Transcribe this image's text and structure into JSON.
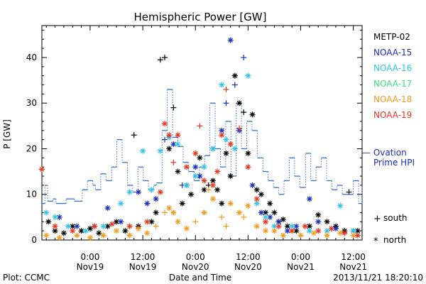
{
  "chart_data": {
    "type": "scatter",
    "title": "Hemispheric Power [GW]",
    "ylabel": "P [GW]",
    "xlabel": "Date and Time",
    "ylim": [
      0,
      47
    ],
    "yticks": [
      0,
      10,
      20,
      30,
      40
    ],
    "xlim": [
      -11,
      62
    ],
    "xticks": [
      {
        "x": 0,
        "time": "0:00",
        "date": "Nov19"
      },
      {
        "x": 12,
        "time": "12:00",
        "date": "Nov19"
      },
      {
        "x": 24,
        "time": "0:00",
        "date": "Nov20"
      },
      {
        "x": 36,
        "time": "12:00",
        "date": "Nov20"
      },
      {
        "x": 48,
        "time": "0:00",
        "date": "Nov21"
      },
      {
        "x": 60,
        "time": "12:00",
        "date": "Nov21"
      }
    ],
    "ovation_label": [
      "— Ovation",
      "Prime HPI"
    ],
    "ovation_color": "#3a6fd8",
    "ovation": [
      [
        -11,
        8
      ],
      [
        -10.3,
        12
      ],
      [
        -9.7,
        8.5
      ],
      [
        -8.5,
        9
      ],
      [
        -7.8,
        8
      ],
      [
        -5.5,
        9
      ],
      [
        -3.6,
        8.5
      ],
      [
        -1.8,
        11
      ],
      [
        -0.6,
        13
      ],
      [
        0.6,
        12
      ],
      [
        1.2,
        11
      ],
      [
        2.4,
        14.5
      ],
      [
        3.6,
        13
      ],
      [
        4.9,
        16
      ],
      [
        6.1,
        22
      ],
      [
        7.3,
        17
      ],
      [
        8.5,
        12
      ],
      [
        9.7,
        10.5
      ],
      [
        10.9,
        16
      ],
      [
        12.1,
        13
      ],
      [
        13.3,
        11
      ],
      [
        14.5,
        12
      ],
      [
        15.1,
        12.5
      ],
      [
        16.4,
        24
      ],
      [
        17.6,
        33
      ],
      [
        18.8,
        22.5
      ],
      [
        20.0,
        20.5
      ],
      [
        21.2,
        17
      ],
      [
        22.4,
        15
      ],
      [
        23.7,
        13
      ],
      [
        24.9,
        16
      ],
      [
        26.1,
        18.5
      ],
      [
        27.3,
        30
      ],
      [
        28.5,
        20
      ],
      [
        29.7,
        16
      ],
      [
        30.9,
        26
      ],
      [
        32.1,
        14
      ],
      [
        33.3,
        30
      ],
      [
        34.5,
        20
      ],
      [
        35.7,
        26
      ],
      [
        36.9,
        24
      ],
      [
        38.1,
        18
      ],
      [
        39.4,
        15
      ],
      [
        40.6,
        13
      ],
      [
        41.8,
        11.5
      ],
      [
        43.0,
        10
      ],
      [
        44.2,
        13
      ],
      [
        45.4,
        18
      ],
      [
        46.6,
        14
      ],
      [
        47.8,
        11.5
      ],
      [
        49.1,
        19
      ],
      [
        50.3,
        13
      ],
      [
        51.5,
        16
      ],
      [
        52.7,
        18
      ],
      [
        53.9,
        13
      ],
      [
        55.1,
        11
      ],
      [
        56.3,
        12
      ],
      [
        57.5,
        10
      ],
      [
        58.8,
        10
      ],
      [
        60.0,
        13
      ],
      [
        61.2,
        8
      ],
      [
        62,
        12
      ]
    ],
    "series": [
      {
        "name": "METP-02",
        "color": "#000000",
        "points": [
          [
            -9.5,
            4,
            "n"
          ],
          [
            -8,
            2,
            "n"
          ],
          [
            -6,
            1.5,
            "n"
          ],
          [
            -4,
            3,
            "n"
          ],
          [
            -2,
            2,
            "n"
          ],
          [
            0,
            2.5,
            "n"
          ],
          [
            2,
            1.5,
            "n"
          ],
          [
            4,
            3,
            "n"
          ],
          [
            6,
            4,
            "n"
          ],
          [
            8,
            2,
            "n"
          ],
          [
            10,
            23,
            "s"
          ],
          [
            11,
            3,
            "n"
          ],
          [
            14,
            4,
            "n"
          ],
          [
            15,
            6,
            "n"
          ],
          [
            16,
            39.5,
            "s"
          ],
          [
            17,
            40,
            "s"
          ],
          [
            18,
            20,
            "n"
          ],
          [
            19,
            29,
            "s"
          ],
          [
            20,
            15,
            "n"
          ],
          [
            21,
            8,
            "n"
          ],
          [
            22,
            12,
            "n"
          ],
          [
            23,
            10,
            "n"
          ],
          [
            25,
            18,
            "n"
          ],
          [
            26,
            11,
            "n"
          ],
          [
            27,
            12,
            "s"
          ],
          [
            28,
            13,
            "n"
          ],
          [
            29,
            11,
            "n"
          ],
          [
            30,
            8,
            "n"
          ],
          [
            31,
            19,
            "n"
          ],
          [
            32,
            14,
            "n"
          ],
          [
            33,
            36,
            "n"
          ],
          [
            34,
            30,
            "n"
          ],
          [
            35,
            28,
            "s"
          ],
          [
            36,
            19,
            "n"
          ],
          [
            37,
            27.5,
            "n"
          ],
          [
            38,
            11,
            "n"
          ],
          [
            39,
            10,
            "n"
          ],
          [
            40,
            6,
            "n"
          ],
          [
            41,
            8,
            "n"
          ],
          [
            42,
            6,
            "n"
          ],
          [
            43,
            4,
            "n"
          ],
          [
            44,
            4.5,
            "n"
          ],
          [
            45,
            3,
            "n"
          ],
          [
            47,
            2,
            "n"
          ],
          [
            50,
            3,
            "n"
          ],
          [
            52,
            5.5,
            "n"
          ],
          [
            54,
            4,
            "n"
          ],
          [
            56,
            3,
            "n"
          ],
          [
            58,
            2,
            "n"
          ],
          [
            59,
            10.5,
            "s"
          ],
          [
            61,
            2,
            "n"
          ]
        ]
      },
      {
        "name": "NOAA-15",
        "color": "#1a2fbf",
        "points": [
          [
            -7,
            5,
            "n"
          ],
          [
            -3,
            3,
            "n"
          ],
          [
            1,
            3,
            "n"
          ],
          [
            4,
            7,
            "n"
          ],
          [
            7,
            4,
            "n"
          ],
          [
            11,
            10.5,
            "n"
          ],
          [
            13,
            8,
            "n"
          ],
          [
            15,
            9,
            "n"
          ],
          [
            17,
            22,
            "s"
          ],
          [
            19,
            21,
            "n"
          ],
          [
            21,
            12,
            "s"
          ],
          [
            24,
            16,
            "n"
          ],
          [
            25,
            14,
            "n"
          ],
          [
            28,
            20,
            "n"
          ],
          [
            30,
            24,
            "n"
          ],
          [
            31,
            30,
            "s"
          ],
          [
            32,
            43.8,
            "n"
          ],
          [
            33,
            34,
            "s"
          ],
          [
            34,
            24,
            "n"
          ],
          [
            35,
            40,
            "s"
          ],
          [
            37,
            12,
            "n"
          ],
          [
            39,
            6,
            "n"
          ],
          [
            41,
            5,
            "n"
          ],
          [
            43,
            4,
            "n"
          ],
          [
            45,
            2,
            "n"
          ],
          [
            47,
            3,
            "n"
          ],
          [
            50,
            9,
            "n"
          ],
          [
            52,
            4,
            "n"
          ],
          [
            56,
            2.5,
            "n"
          ],
          [
            60,
            2,
            "n"
          ]
        ]
      },
      {
        "name": "NOAA-16",
        "color": "#2fc4e8",
        "points": [
          [
            -10,
            6,
            "n"
          ],
          [
            -8,
            5,
            "n"
          ],
          [
            -5,
            3,
            "n"
          ],
          [
            -1,
            2,
            "n"
          ],
          [
            3,
            3,
            "n"
          ],
          [
            7,
            8,
            "n"
          ],
          [
            9,
            10.5,
            "n"
          ],
          [
            12,
            19.5,
            "n"
          ],
          [
            14,
            11,
            "n"
          ],
          [
            16,
            19.5,
            "n"
          ],
          [
            18,
            22.5,
            "n"
          ],
          [
            20,
            21,
            "n"
          ],
          [
            22,
            12,
            "n"
          ],
          [
            24,
            14,
            "n"
          ],
          [
            26,
            16,
            "n"
          ],
          [
            28,
            20,
            "n"
          ],
          [
            30,
            34,
            "n"
          ],
          [
            31,
            22,
            "n"
          ],
          [
            33,
            20,
            "n"
          ],
          [
            36,
            36,
            "n"
          ],
          [
            38,
            8,
            "n"
          ],
          [
            40,
            5,
            "n"
          ],
          [
            42,
            3,
            "n"
          ],
          [
            46,
            3,
            "n"
          ],
          [
            50,
            2,
            "n"
          ],
          [
            54,
            2,
            "n"
          ],
          [
            57,
            7.5,
            "n"
          ],
          [
            60,
            2,
            "n"
          ]
        ]
      },
      {
        "name": "NOAA-17",
        "color": "#3de07a",
        "points": []
      },
      {
        "name": "NOAA-18",
        "color": "#f39a1e",
        "points": [
          [
            -10,
            1,
            "n"
          ],
          [
            -7,
            0.5,
            "n"
          ],
          [
            -3,
            1,
            "n"
          ],
          [
            0,
            0.5,
            "n"
          ],
          [
            3,
            1,
            "n"
          ],
          [
            6,
            2,
            "n"
          ],
          [
            9,
            1,
            "n"
          ],
          [
            11,
            2.5,
            "n"
          ],
          [
            13,
            1.5,
            "n"
          ],
          [
            15,
            3,
            "s"
          ],
          [
            17,
            6,
            "s"
          ],
          [
            18,
            7,
            "n"
          ],
          [
            19,
            6,
            "n"
          ],
          [
            20,
            4,
            "n"
          ],
          [
            22,
            2.5,
            "n"
          ],
          [
            24,
            4,
            "s"
          ],
          [
            26,
            6,
            "n"
          ],
          [
            27,
            11,
            "s"
          ],
          [
            28,
            9,
            "n"
          ],
          [
            30,
            5,
            "s"
          ],
          [
            31,
            3,
            "s"
          ],
          [
            32,
            8,
            "n"
          ],
          [
            34,
            6,
            "n"
          ],
          [
            35,
            5,
            "s"
          ],
          [
            36,
            7.5,
            "n"
          ],
          [
            38,
            3,
            "n"
          ],
          [
            40,
            2,
            "n"
          ],
          [
            42,
            2,
            "n"
          ],
          [
            44,
            1,
            "n"
          ],
          [
            46,
            2,
            "n"
          ],
          [
            48,
            1,
            "n"
          ],
          [
            51,
            1.5,
            "n"
          ],
          [
            54,
            1,
            "n"
          ],
          [
            57,
            1.5,
            "n"
          ],
          [
            60,
            1,
            "n"
          ]
        ]
      },
      {
        "name": "NOAA-19",
        "color": "#e8351e",
        "points": [
          [
            -11,
            15.5,
            "n"
          ],
          [
            -8,
            3,
            "n"
          ],
          [
            -4,
            2,
            "n"
          ],
          [
            1,
            3,
            "n"
          ],
          [
            5,
            3.5,
            "n"
          ],
          [
            9,
            3,
            "n"
          ],
          [
            13,
            4,
            "n"
          ],
          [
            16,
            10.5,
            "n"
          ],
          [
            17,
            25.5,
            "n"
          ],
          [
            18,
            23,
            "n"
          ],
          [
            19,
            17,
            "s"
          ],
          [
            20,
            23,
            "n"
          ],
          [
            22,
            16,
            "n"
          ],
          [
            24,
            19,
            "n"
          ],
          [
            25,
            25,
            "s"
          ],
          [
            26,
            13,
            "n"
          ],
          [
            28,
            12,
            "n"
          ],
          [
            29,
            15,
            "n"
          ],
          [
            30,
            23,
            "n"
          ],
          [
            31,
            33,
            "s"
          ],
          [
            32,
            21,
            "n"
          ],
          [
            34,
            24.5,
            "s"
          ],
          [
            36,
            16,
            "n"
          ],
          [
            38,
            9,
            "n"
          ],
          [
            40,
            4,
            "n"
          ],
          [
            43,
            3,
            "n"
          ],
          [
            46,
            2,
            "n"
          ],
          [
            49,
            3,
            "n"
          ],
          [
            52,
            2,
            "n"
          ],
          [
            55,
            2.5,
            "n"
          ],
          [
            58,
            1.5,
            "n"
          ],
          [
            61,
            1,
            "n"
          ]
        ]
      }
    ],
    "marker_legend": [
      {
        "symbol": "+",
        "label": "south"
      },
      {
        "symbol": "*",
        "label": "north"
      }
    ]
  },
  "footer": {
    "left": "Plot: CCMC",
    "right": "2013/11/21 18:20:10"
  }
}
